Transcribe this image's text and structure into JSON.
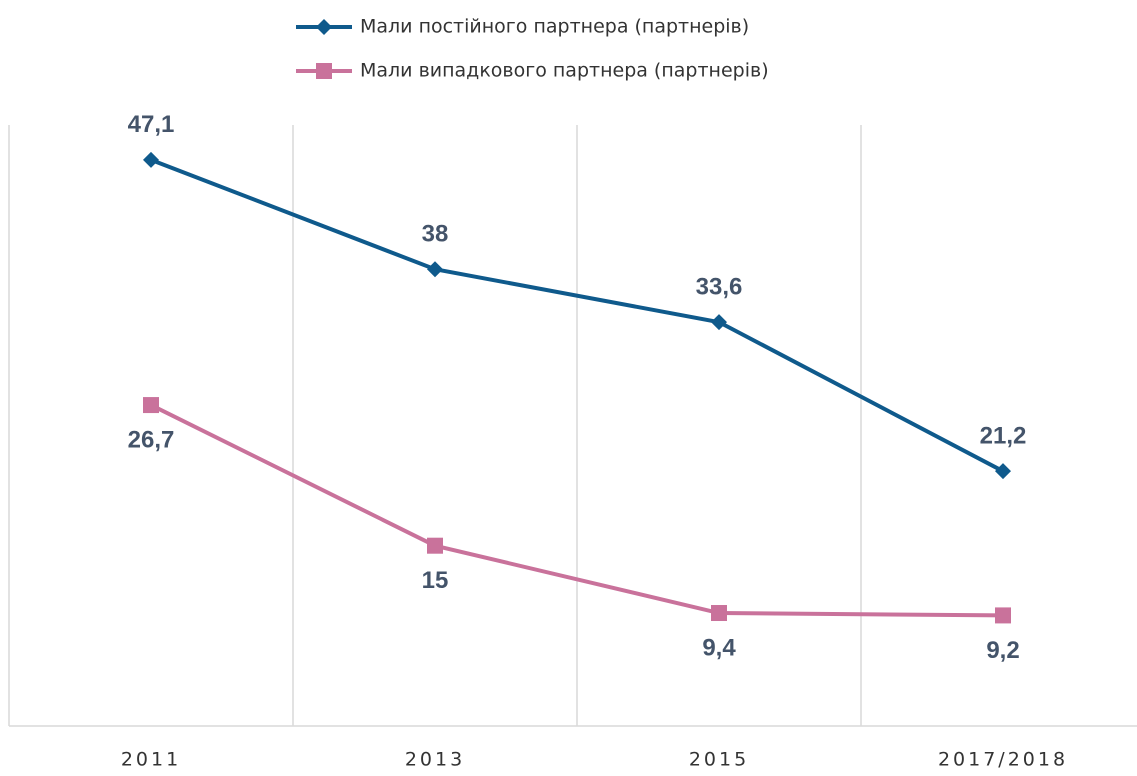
{
  "chart_data": {
    "type": "line",
    "categories": [
      "2011",
      "2013",
      "2015",
      "2017/2018"
    ],
    "series": [
      {
        "name": "Мали постійного партнера (партнерів)",
        "color": "#0f5a8c",
        "marker": "diamond",
        "values": [
          47.1,
          38,
          33.6,
          21.2
        ],
        "value_labels": [
          "47,1",
          "38",
          "33,6",
          "21,2"
        ]
      },
      {
        "name": "Мали випадкового партнера (партнерів)",
        "color": "#c9729b",
        "marker": "square",
        "values": [
          26.7,
          15,
          9.4,
          9.2
        ],
        "value_labels": [
          "26,7",
          "15",
          "9,4",
          "9,2"
        ]
      }
    ],
    "ylim": [
      0,
      50
    ],
    "grid": true,
    "legend": "top"
  }
}
